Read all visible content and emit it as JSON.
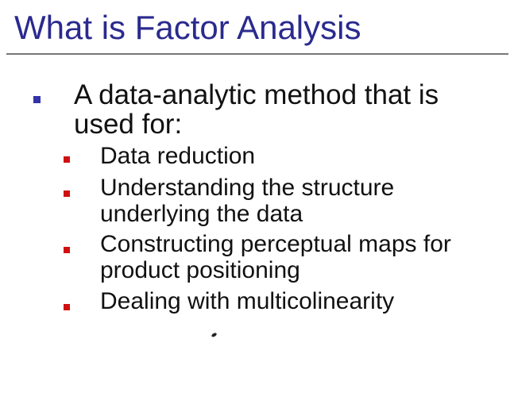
{
  "slide": {
    "title": "What is Factor Analysis",
    "main_point": {
      "text": "A data-analytic method that is used for:",
      "sub_points": [
        "Data reduction",
        "Understanding the structure underlying the data",
        "Constructing perceptual maps for product positioning",
        "Dealing with multicolinearity"
      ]
    }
  },
  "colors": {
    "title": "#2a2a8f",
    "level1_bullet": "#3333aa",
    "level2_bullet": "#d01010",
    "body_text": "#111111",
    "rule": "#777777"
  }
}
